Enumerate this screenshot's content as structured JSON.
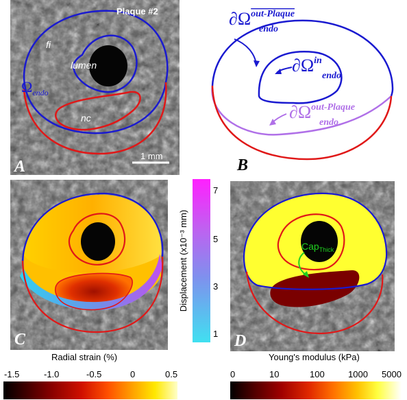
{
  "panel_a": {
    "letter": "A",
    "title": "Plaque #2",
    "scale_bar": "1 mm",
    "label_fi": "fi",
    "label_lumen": "lumen",
    "label_nc": "nc",
    "label_omega": "Ω",
    "label_omega_sub": "endo"
  },
  "panel_b": {
    "letter": "B",
    "label_out_plaque_bar": {
      "main": "∂Ω",
      "sup": "out-Plaque",
      "sub": "endo"
    },
    "label_in": {
      "main": "∂Ω",
      "sup": "in",
      "sub": "endo"
    },
    "label_out_plaque": {
      "main": "∂Ω",
      "sup": "out-Plaque",
      "sub": "endo"
    }
  },
  "panel_c": {
    "letter": "C"
  },
  "panel_d": {
    "letter": "D",
    "cap_label": "Cap",
    "cap_sub": "Thick"
  },
  "displacement_bar": {
    "label": "Displacement (x10⁻³ mm)",
    "ticks": [
      "7",
      "5",
      "3",
      "1"
    ]
  },
  "strain_colorbar": {
    "title": "Radial strain (%)",
    "ticks": [
      "-1.5",
      "-1.0",
      "-0.5",
      "0",
      "0.5"
    ]
  },
  "modulus_colorbar": {
    "title": "Young's modulus (kPa)",
    "ticks": [
      "0",
      "10",
      "100",
      "1000",
      "5000"
    ]
  },
  "colors": {
    "blue_contour": "#1a1ad0",
    "red_contour": "#e01818",
    "purple_contour": "#b070e8",
    "green_annotation": "#20d020",
    "cap_yellow": "#ffff30"
  }
}
